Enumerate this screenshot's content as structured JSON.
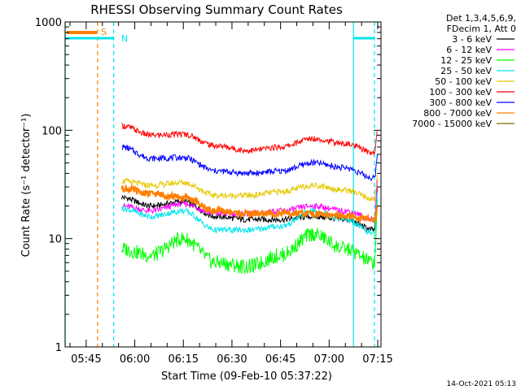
{
  "chart_data": {
    "type": "line",
    "title": "RHESSI Observing Summary Count Rates",
    "xlabel": "Start Time (09-Feb-10 05:37:22)",
    "ylabel": "Count Rate (s⁻¹ detector⁻¹)",
    "yscale": "log",
    "ylim": [
      1,
      1000
    ],
    "xlim_minutes_from_0530": [
      8.5,
      106
    ],
    "x_ticks": [
      {
        "label": "05:45",
        "min": 15
      },
      {
        "label": "06:00",
        "min": 30
      },
      {
        "label": "06:15",
        "min": 45
      },
      {
        "label": "06:30",
        "min": 60
      },
      {
        "label": "06:45",
        "min": 75
      },
      {
        "label": "07:00",
        "min": 90
      },
      {
        "label": "07:15",
        "min": 105
      }
    ],
    "y_ticks": [
      {
        "label": "1",
        "value": 1
      },
      {
        "label": "10",
        "value": 10
      },
      {
        "label": "100",
        "value": 100
      },
      {
        "label": "1000",
        "value": 1000
      }
    ],
    "legend": {
      "header": [
        "Det 1,3,4,5,6,9,",
        "FDecim 1, Att 0"
      ],
      "placement": "right"
    },
    "flag_labels": {
      "s": "S",
      "n": "N"
    },
    "footer_date": "14-Oct-2021 05:13",
    "markers": [
      {
        "type": "solid",
        "color": "#00e5ee",
        "min": 8.5
      },
      {
        "type": "dashed",
        "color": "#ff7f00",
        "min": 18.5
      },
      {
        "type": "dashed",
        "color": "#00e5ee",
        "min": 23.5
      },
      {
        "type": "solid",
        "color": "#00e5ee",
        "min": 97.5
      },
      {
        "type": "dashed",
        "color": "#00e5ee",
        "min": 104
      }
    ],
    "series": [
      {
        "name": "3 - 6 keV",
        "color": "#000000",
        "values": [
          [
            26,
            24
          ],
          [
            35,
            20
          ],
          [
            45,
            22
          ],
          [
            55,
            16
          ],
          [
            65,
            15
          ],
          [
            75,
            15
          ],
          [
            85,
            16
          ],
          [
            95,
            15
          ],
          [
            104,
            12
          ],
          [
            105,
            30
          ]
        ]
      },
      {
        "name": "6 - 12 keV",
        "color": "#ff00ff",
        "values": [
          [
            26,
            20
          ],
          [
            35,
            18
          ],
          [
            45,
            21
          ],
          [
            55,
            17
          ],
          [
            65,
            17
          ],
          [
            75,
            18
          ],
          [
            85,
            20
          ],
          [
            95,
            18
          ],
          [
            104,
            15
          ],
          [
            105,
            35
          ]
        ]
      },
      {
        "name": "12 - 25 keV",
        "color": "#00ff00",
        "values": [
          [
            26,
            8
          ],
          [
            35,
            7
          ],
          [
            45,
            10
          ],
          [
            55,
            6
          ],
          [
            65,
            5.5
          ],
          [
            75,
            7
          ],
          [
            85,
            11
          ],
          [
            95,
            8
          ],
          [
            104,
            6
          ],
          [
            105,
            25
          ]
        ]
      },
      {
        "name": "25 - 50 keV",
        "color": "#00e5ee",
        "values": [
          [
            26,
            19
          ],
          [
            35,
            16
          ],
          [
            45,
            18
          ],
          [
            55,
            12
          ],
          [
            65,
            12
          ],
          [
            75,
            13
          ],
          [
            85,
            18
          ],
          [
            95,
            15
          ],
          [
            104,
            11
          ],
          [
            105,
            30
          ]
        ]
      },
      {
        "name": "50 - 100 keV",
        "color": "#e6c800",
        "values": [
          [
            26,
            34
          ],
          [
            35,
            31
          ],
          [
            45,
            33
          ],
          [
            55,
            25
          ],
          [
            65,
            25
          ],
          [
            75,
            27
          ],
          [
            85,
            31
          ],
          [
            95,
            28
          ],
          [
            104,
            23
          ],
          [
            105,
            40
          ]
        ]
      },
      {
        "name": "100 - 300 keV",
        "color": "#ff0000",
        "values": [
          [
            26,
            110
          ],
          [
            35,
            90
          ],
          [
            45,
            92
          ],
          [
            55,
            72
          ],
          [
            65,
            65
          ],
          [
            75,
            70
          ],
          [
            85,
            84
          ],
          [
            95,
            75
          ],
          [
            104,
            62
          ],
          [
            105,
            100
          ]
        ]
      },
      {
        "name": "300 - 800 keV",
        "color": "#0000ff",
        "values": [
          [
            26,
            70
          ],
          [
            35,
            55
          ],
          [
            45,
            56
          ],
          [
            55,
            42
          ],
          [
            65,
            40
          ],
          [
            75,
            42
          ],
          [
            85,
            50
          ],
          [
            95,
            45
          ],
          [
            104,
            36
          ],
          [
            105,
            60
          ]
        ]
      },
      {
        "name": "800 - 7000 keV",
        "color": "#ff7f00",
        "values": [
          [
            26,
            29
          ],
          [
            35,
            26
          ],
          [
            45,
            24
          ],
          [
            55,
            18
          ],
          [
            65,
            17
          ],
          [
            75,
            17
          ],
          [
            85,
            17
          ],
          [
            95,
            16
          ],
          [
            104,
            15
          ],
          [
            105,
            20
          ]
        ]
      },
      {
        "name": "7000 - 15000 keV",
        "color": "#8b6508",
        "values": []
      }
    ]
  }
}
